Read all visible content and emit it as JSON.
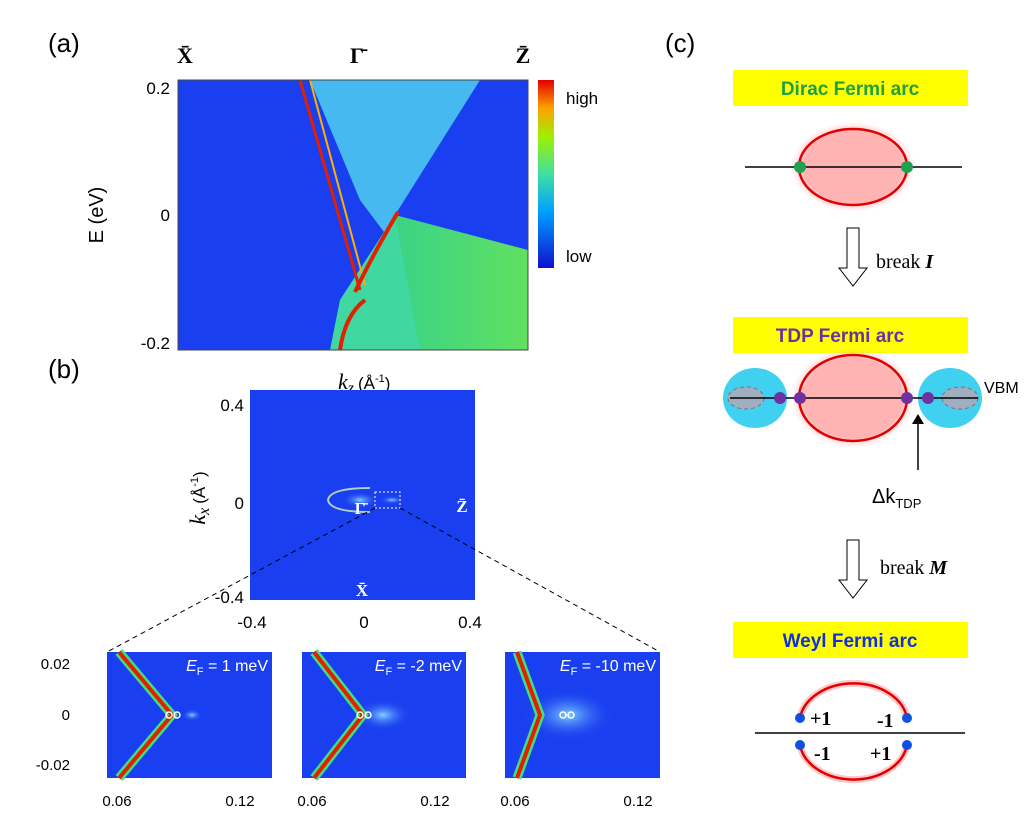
{
  "panel_a": {
    "label": "(a)",
    "top_labels": [
      "X̄",
      "Γ̄",
      "Z̄"
    ],
    "yticks": [
      "0.2",
      "0",
      "-0.2"
    ],
    "ylabel": "E (eV)",
    "colorbar": {
      "high": "high",
      "low": "low"
    },
    "xlabel": {
      "symbol": "k",
      "subscript": "z",
      "unit_open": "(Å",
      "unit_exponent": "-1",
      "unit_close": ")"
    }
  },
  "panel_b": {
    "label": "(b)",
    "yticks": [
      "0.4",
      "0",
      "-0.4"
    ],
    "xticks": [
      "-0.4",
      "0",
      "0.4"
    ],
    "ylabel": {
      "symbol": "k",
      "subscript": "x",
      "unit_open": "(Å",
      "unit_exponent": "-1",
      "unit_close": ")"
    },
    "points": [
      "Γ̄",
      "Z̄",
      "X̄"
    ],
    "insets": [
      {
        "symbol": "E",
        "subscript": "F",
        "text": " = 1 meV"
      },
      {
        "symbol": "E",
        "subscript": "F",
        "text": " = -2 meV"
      },
      {
        "symbol": "E",
        "subscript": "F",
        "text": " = -10 meV"
      }
    ],
    "inset_yticks": [
      "0.02",
      "0",
      "-0.02"
    ],
    "inset_xticks": [
      "0.06",
      "0.12"
    ]
  },
  "panel_c": {
    "label": "(c)",
    "stage1": "Dirac Fermi arc",
    "step1": {
      "text": "break ",
      "symbol": "I"
    },
    "stage2": "TDP Fermi arc",
    "vbm": "VBM",
    "delta": {
      "symbol": "Δk",
      "subscript": "TDP"
    },
    "step2": {
      "text": "break ",
      "symbol": "M"
    },
    "stage3": "Weyl Fermi arc",
    "charges": [
      "+1",
      "-1",
      "-1",
      "+1"
    ]
  }
}
